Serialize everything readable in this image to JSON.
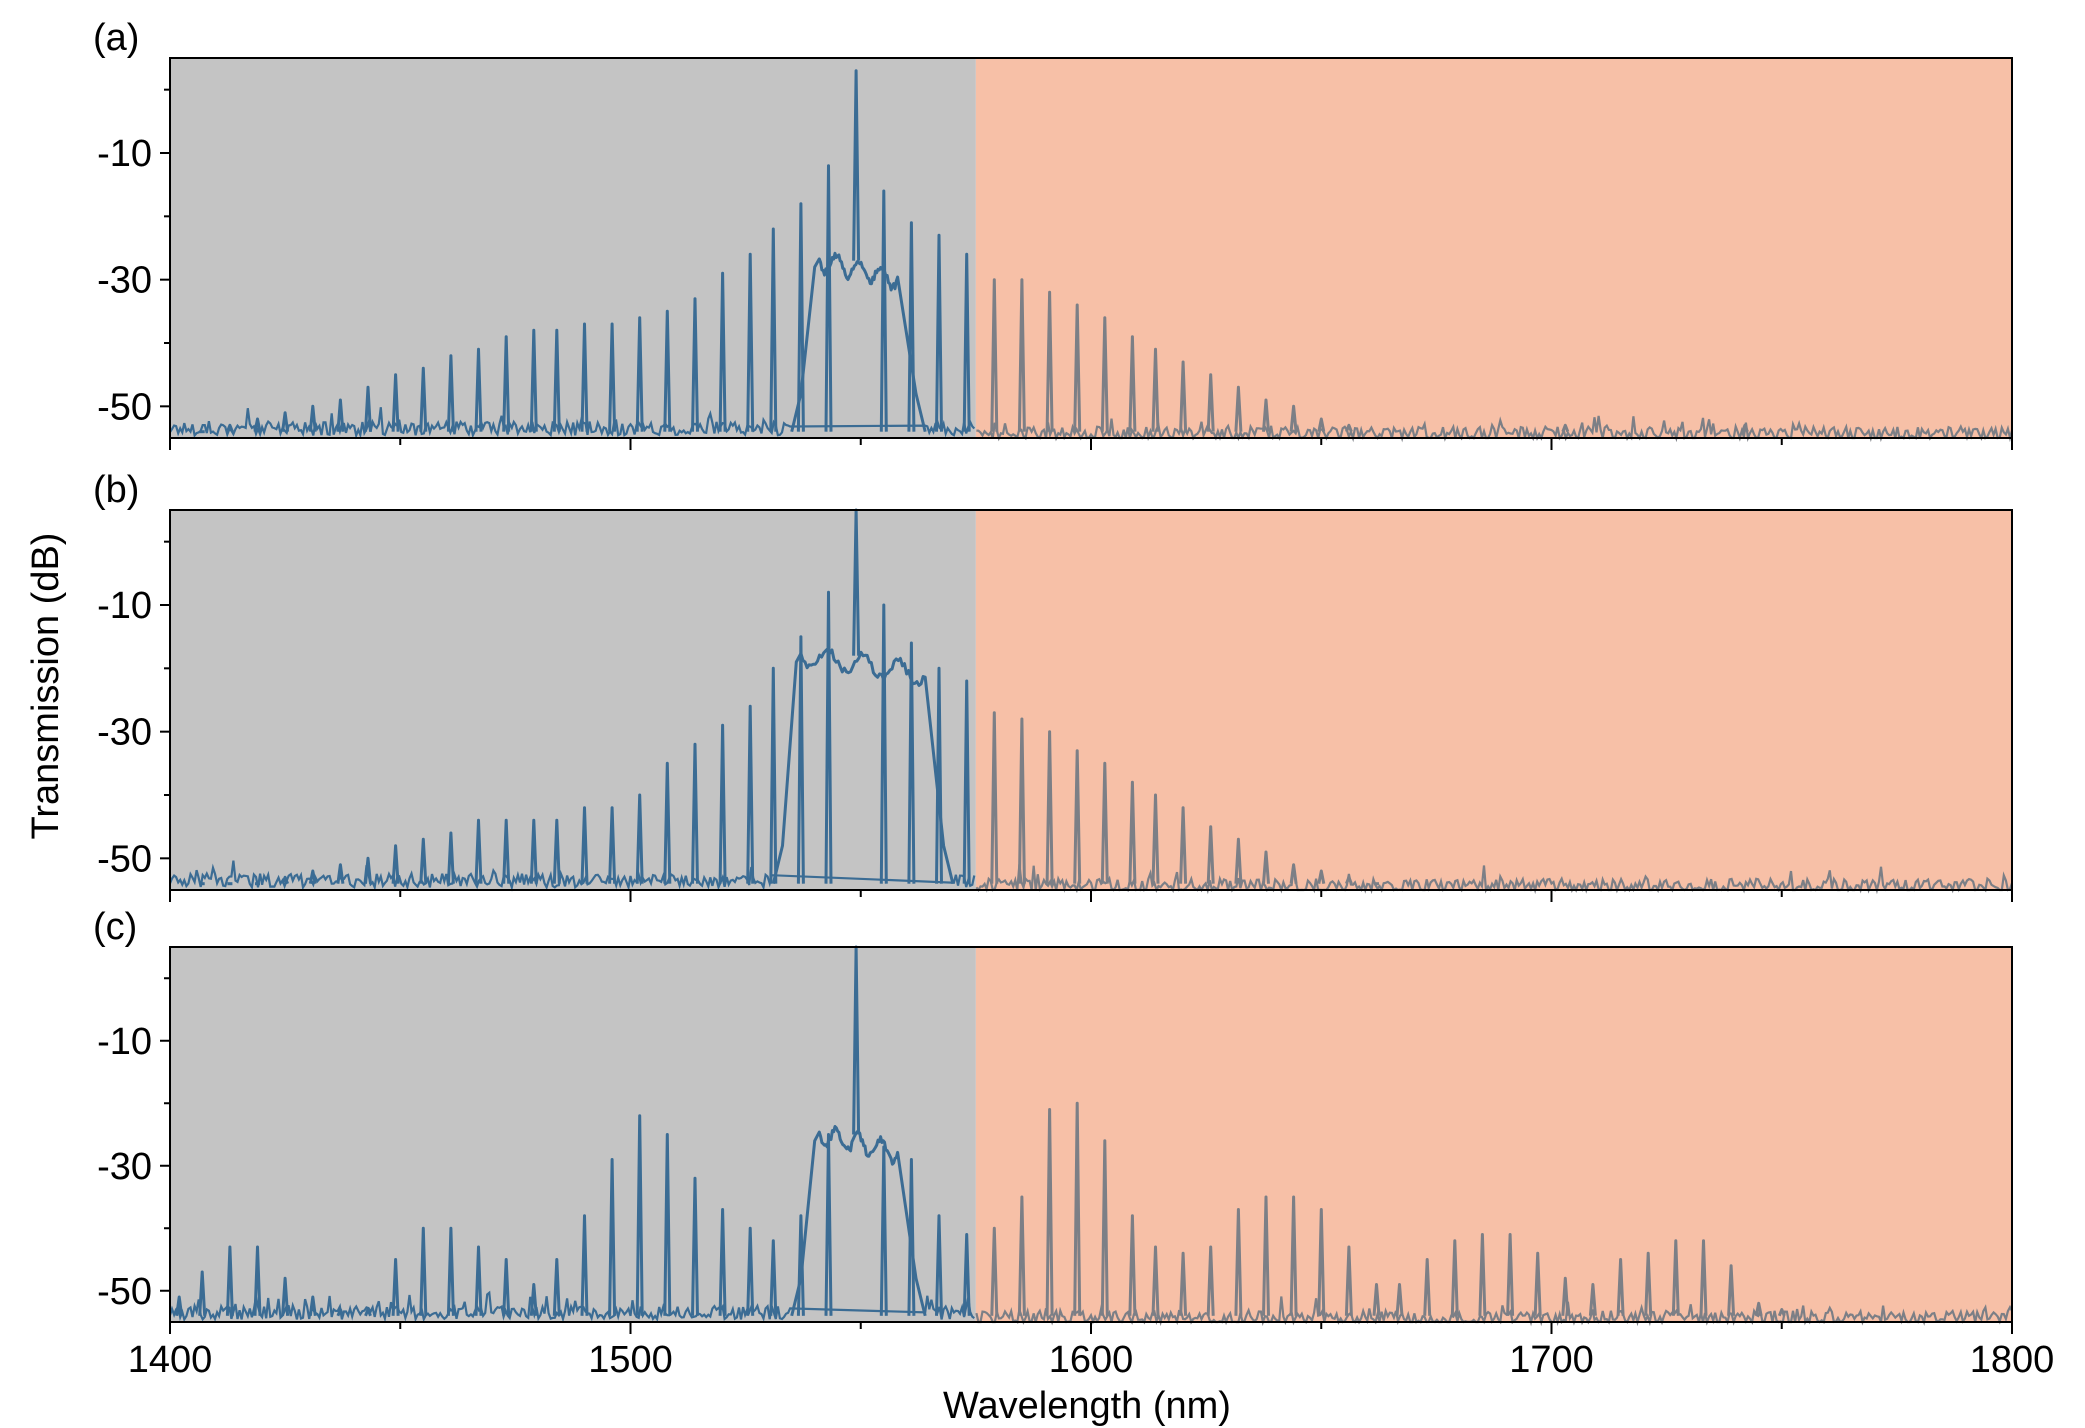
{
  "chart_data": [
    {
      "type": "line",
      "panel_label": "(a)",
      "xlim": [
        1400,
        1800
      ],
      "ylim": [
        -55,
        5
      ],
      "pump_nm": 1549,
      "pump_db": 3,
      "plateau": {
        "start_nm": 1536,
        "end_nm": 1563,
        "top_db": -27,
        "floor_db": -54
      },
      "comb_lines": [
        {
          "x": 1407,
          "y": -54
        },
        {
          "x": 1413,
          "y": -53
        },
        {
          "x": 1419,
          "y": -52
        },
        {
          "x": 1425,
          "y": -51
        },
        {
          "x": 1431,
          "y": -50
        },
        {
          "x": 1437,
          "y": -49
        },
        {
          "x": 1443,
          "y": -47
        },
        {
          "x": 1449,
          "y": -45
        },
        {
          "x": 1455,
          "y": -44
        },
        {
          "x": 1461,
          "y": -42
        },
        {
          "x": 1467,
          "y": -41
        },
        {
          "x": 1473,
          "y": -39
        },
        {
          "x": 1479,
          "y": -38
        },
        {
          "x": 1484,
          "y": -38
        },
        {
          "x": 1490,
          "y": -37
        },
        {
          "x": 1496,
          "y": -37
        },
        {
          "x": 1502,
          "y": -36
        },
        {
          "x": 1508,
          "y": -35
        },
        {
          "x": 1514,
          "y": -33
        },
        {
          "x": 1520,
          "y": -29
        },
        {
          "x": 1526,
          "y": -26
        },
        {
          "x": 1531,
          "y": -22
        },
        {
          "x": 1537,
          "y": -18
        },
        {
          "x": 1543,
          "y": -12
        },
        {
          "x": 1555,
          "y": -16
        },
        {
          "x": 1561,
          "y": -21
        },
        {
          "x": 1567,
          "y": -23
        },
        {
          "x": 1573,
          "y": -26
        },
        {
          "x": 1579,
          "y": -30
        },
        {
          "x": 1585,
          "y": -30
        },
        {
          "x": 1591,
          "y": -32
        },
        {
          "x": 1597,
          "y": -34
        },
        {
          "x": 1603,
          "y": -36
        },
        {
          "x": 1609,
          "y": -39
        },
        {
          "x": 1614,
          "y": -41
        },
        {
          "x": 1620,
          "y": -43
        },
        {
          "x": 1626,
          "y": -45
        },
        {
          "x": 1632,
          "y": -47
        },
        {
          "x": 1638,
          "y": -49
        },
        {
          "x": 1644,
          "y": -50
        },
        {
          "x": 1650,
          "y": -52
        },
        {
          "x": 1656,
          "y": -53
        },
        {
          "x": 1703,
          "y": -53
        },
        {
          "x": 1742,
          "y": -53
        }
      ]
    },
    {
      "type": "line",
      "panel_label": "(b)",
      "xlim": [
        1400,
        1800
      ],
      "ylim": [
        -55,
        5
      ],
      "pump_nm": 1549,
      "pump_db": 5,
      "plateau": {
        "start_nm": 1532,
        "end_nm": 1569,
        "top_db": -18,
        "floor_db": -54
      },
      "comb_lines": [
        {
          "x": 1407,
          "y": -54
        },
        {
          "x": 1413,
          "y": -54
        },
        {
          "x": 1419,
          "y": -54
        },
        {
          "x": 1425,
          "y": -53
        },
        {
          "x": 1431,
          "y": -52
        },
        {
          "x": 1437,
          "y": -51
        },
        {
          "x": 1443,
          "y": -50
        },
        {
          "x": 1449,
          "y": -48
        },
        {
          "x": 1455,
          "y": -47
        },
        {
          "x": 1461,
          "y": -46
        },
        {
          "x": 1467,
          "y": -44
        },
        {
          "x": 1473,
          "y": -44
        },
        {
          "x": 1479,
          "y": -44
        },
        {
          "x": 1484,
          "y": -44
        },
        {
          "x": 1490,
          "y": -42
        },
        {
          "x": 1496,
          "y": -42
        },
        {
          "x": 1502,
          "y": -40
        },
        {
          "x": 1508,
          "y": -35
        },
        {
          "x": 1514,
          "y": -32
        },
        {
          "x": 1520,
          "y": -29
        },
        {
          "x": 1526,
          "y": -26
        },
        {
          "x": 1531,
          "y": -20
        },
        {
          "x": 1537,
          "y": -15
        },
        {
          "x": 1543,
          "y": -8
        },
        {
          "x": 1555,
          "y": -10
        },
        {
          "x": 1561,
          "y": -16
        },
        {
          "x": 1567,
          "y": -20
        },
        {
          "x": 1573,
          "y": -22
        },
        {
          "x": 1579,
          "y": -27
        },
        {
          "x": 1585,
          "y": -28
        },
        {
          "x": 1591,
          "y": -30
        },
        {
          "x": 1597,
          "y": -33
        },
        {
          "x": 1603,
          "y": -35
        },
        {
          "x": 1609,
          "y": -38
        },
        {
          "x": 1614,
          "y": -40
        },
        {
          "x": 1620,
          "y": -42
        },
        {
          "x": 1626,
          "y": -45
        },
        {
          "x": 1632,
          "y": -47
        },
        {
          "x": 1638,
          "y": -49
        },
        {
          "x": 1644,
          "y": -51
        },
        {
          "x": 1650,
          "y": -52
        },
        {
          "x": 1656,
          "y": -53
        },
        {
          "x": 1662,
          "y": -54
        }
      ]
    },
    {
      "type": "line",
      "panel_label": "(c)",
      "xlim": [
        1400,
        1800
      ],
      "ylim": [
        -55,
        5
      ],
      "pump_nm": 1549,
      "pump_db": 5,
      "plateau": {
        "start_nm": 1536,
        "end_nm": 1563,
        "top_db": -25,
        "floor_db": -54
      },
      "comb_lines": [
        {
          "x": 1402,
          "y": -51
        },
        {
          "x": 1407,
          "y": -47
        },
        {
          "x": 1413,
          "y": -43
        },
        {
          "x": 1419,
          "y": -43
        },
        {
          "x": 1425,
          "y": -48
        },
        {
          "x": 1431,
          "y": -51
        },
        {
          "x": 1437,
          "y": -53
        },
        {
          "x": 1443,
          "y": -53
        },
        {
          "x": 1449,
          "y": -45
        },
        {
          "x": 1455,
          "y": -40
        },
        {
          "x": 1461,
          "y": -40
        },
        {
          "x": 1467,
          "y": -43
        },
        {
          "x": 1473,
          "y": -45
        },
        {
          "x": 1479,
          "y": -49
        },
        {
          "x": 1484,
          "y": -45
        },
        {
          "x": 1490,
          "y": -38
        },
        {
          "x": 1496,
          "y": -29
        },
        {
          "x": 1502,
          "y": -22
        },
        {
          "x": 1508,
          "y": -25
        },
        {
          "x": 1514,
          "y": -32
        },
        {
          "x": 1520,
          "y": -37
        },
        {
          "x": 1526,
          "y": -40
        },
        {
          "x": 1531,
          "y": -42
        },
        {
          "x": 1537,
          "y": -38
        },
        {
          "x": 1543,
          "y": -25
        },
        {
          "x": 1555,
          "y": -27
        },
        {
          "x": 1561,
          "y": -29
        },
        {
          "x": 1567,
          "y": -38
        },
        {
          "x": 1573,
          "y": -41
        },
        {
          "x": 1579,
          "y": -40
        },
        {
          "x": 1585,
          "y": -35
        },
        {
          "x": 1591,
          "y": -21
        },
        {
          "x": 1597,
          "y": -20
        },
        {
          "x": 1603,
          "y": -26
        },
        {
          "x": 1609,
          "y": -38
        },
        {
          "x": 1614,
          "y": -43
        },
        {
          "x": 1620,
          "y": -44
        },
        {
          "x": 1626,
          "y": -43
        },
        {
          "x": 1632,
          "y": -37
        },
        {
          "x": 1638,
          "y": -35
        },
        {
          "x": 1644,
          "y": -35
        },
        {
          "x": 1650,
          "y": -37
        },
        {
          "x": 1656,
          "y": -43
        },
        {
          "x": 1662,
          "y": -49
        },
        {
          "x": 1667,
          "y": -49
        },
        {
          "x": 1673,
          "y": -45
        },
        {
          "x": 1679,
          "y": -42
        },
        {
          "x": 1685,
          "y": -41
        },
        {
          "x": 1691,
          "y": -41
        },
        {
          "x": 1697,
          "y": -44
        },
        {
          "x": 1703,
          "y": -48
        },
        {
          "x": 1709,
          "y": -49
        },
        {
          "x": 1715,
          "y": -45
        },
        {
          "x": 1721,
          "y": -44
        },
        {
          "x": 1727,
          "y": -42
        },
        {
          "x": 1733,
          "y": -42
        },
        {
          "x": 1739,
          "y": -46
        },
        {
          "x": 1745,
          "y": -52
        },
        {
          "x": 1750,
          "y": -53
        }
      ]
    }
  ],
  "axes": {
    "xlabel": "Wavelength (nm)",
    "ylabel": "Transmission (dB)",
    "x_ticks": [
      "1400",
      "1500",
      "1600",
      "1700",
      "1800"
    ],
    "x_tick_values": [
      1400,
      1500,
      1600,
      1700,
      1800
    ],
    "x_minor_tick_values": [
      1450,
      1550,
      1650,
      1750
    ],
    "y_ticks": [
      "-10",
      "-30",
      "-50"
    ],
    "y_tick_values": [
      -10,
      -30,
      -50
    ],
    "y_minor_tick_values": [
      0,
      -20,
      -40
    ]
  },
  "regions": {
    "split_nm": 1575,
    "left_color": "#c4c4c4",
    "right_color": "#f7c0a7"
  },
  "colors": {
    "trace_left": "#3b6c94",
    "trace_right": "#7c7f86",
    "axis": "#000000"
  }
}
